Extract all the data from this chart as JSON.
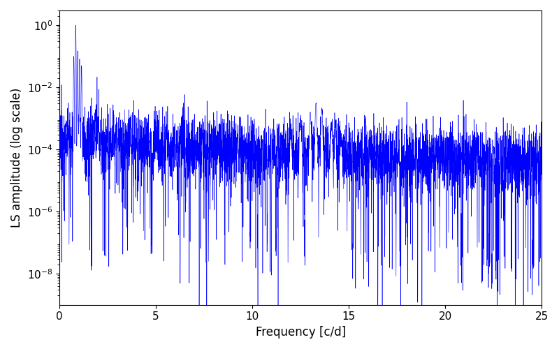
{
  "title": "",
  "xlabel": "Frequency [c/d]",
  "ylabel": "LS amplitude (log scale)",
  "line_color": "#0000ff",
  "xlim": [
    0,
    25
  ],
  "ylim": [
    1e-09,
    3.0
  ],
  "ylim_plot": [
    1e-09,
    3.0
  ],
  "xgrid": false,
  "ygrid": false,
  "figsize": [
    8.0,
    5.0
  ],
  "dpi": 100,
  "seed": 12345,
  "n_points": 5000,
  "main_peak_freq": 0.85,
  "main_peak_amp": 1.0,
  "secondary_peak_freq": 13.3,
  "secondary_peak_amp": 0.003
}
